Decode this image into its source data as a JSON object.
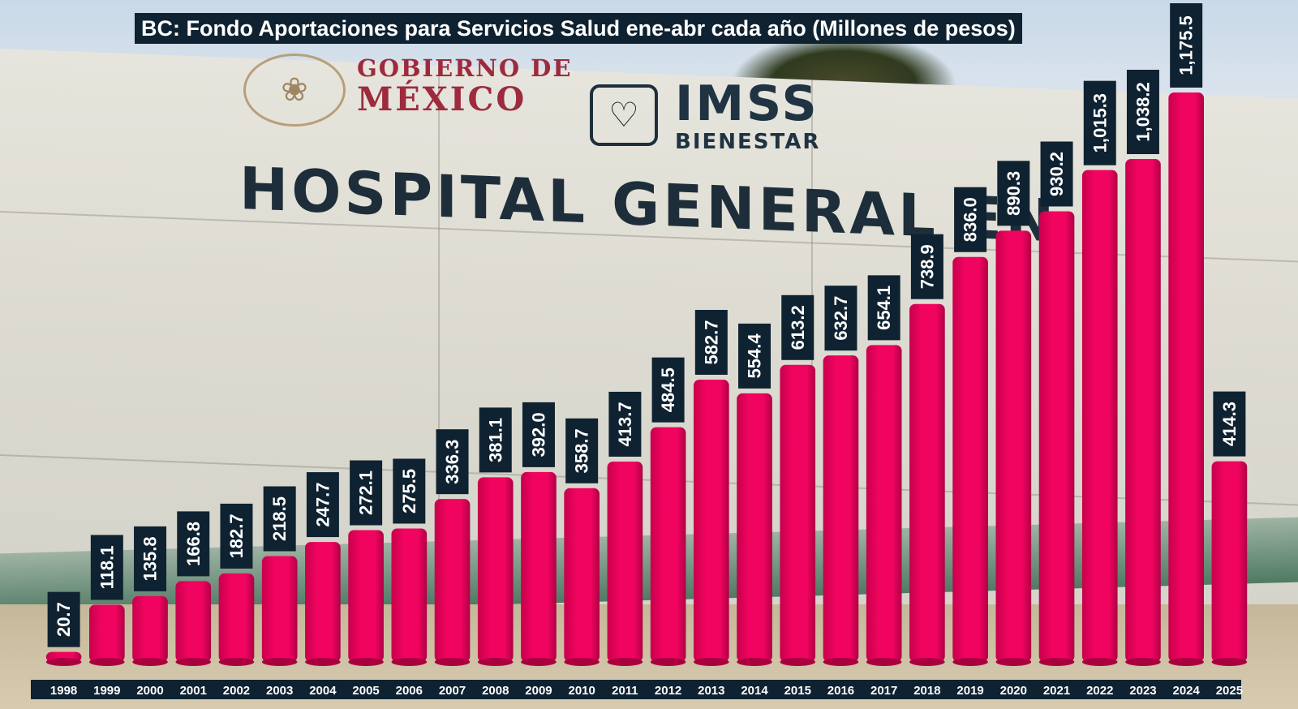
{
  "chart_data": {
    "type": "bar",
    "title": "BC: Fondo Aportaciones para Servicios Salud ene-abr cada año (Millones de pesos)",
    "xlabel": "",
    "ylabel": "",
    "categories": [
      "1998",
      "1999",
      "2000",
      "2001",
      "2002",
      "2003",
      "2004",
      "2005",
      "2006",
      "2007",
      "2008",
      "2009",
      "2010",
      "2011",
      "2012",
      "2013",
      "2014",
      "2015",
      "2016",
      "2017",
      "2018",
      "2019",
      "2020",
      "2021",
      "2022",
      "2023",
      "2024",
      "2025"
    ],
    "values": [
      20.7,
      118.1,
      135.8,
      166.8,
      182.7,
      218.5,
      247.7,
      272.1,
      275.5,
      336.3,
      381.1,
      392.0,
      358.7,
      413.7,
      484.5,
      582.7,
      554.4,
      613.2,
      632.7,
      654.1,
      738.9,
      836.0,
      890.3,
      930.2,
      1015.3,
      1038.2,
      1175.5,
      414.3
    ],
    "value_labels": [
      "20.7",
      "118.1",
      "135.8",
      "166.8",
      "182.7",
      "218.5",
      "247.7",
      "272.1",
      "275.5",
      "336.3",
      "381.1",
      "392.0",
      "358.7",
      "413.7",
      "484.5",
      "582.7",
      "554.4",
      "613.2",
      "632.7",
      "654.1",
      "738.9",
      "836.0",
      "890.3",
      "930.2",
      "1,015.3",
      "1,038.2",
      "1,175.5",
      "414.3"
    ],
    "ylim": [
      0,
      1175.5
    ],
    "grid": false,
    "bar_color": "#f0045f",
    "label_bg_color": "#0f2231"
  },
  "background": {
    "sign_line1": "GOBIERNO DE",
    "sign_line2": "MÉXICO",
    "imss": "IMSS",
    "bienestar": "BIENESTAR",
    "hospital": "HOSPITAL  GENERAL  EN"
  }
}
